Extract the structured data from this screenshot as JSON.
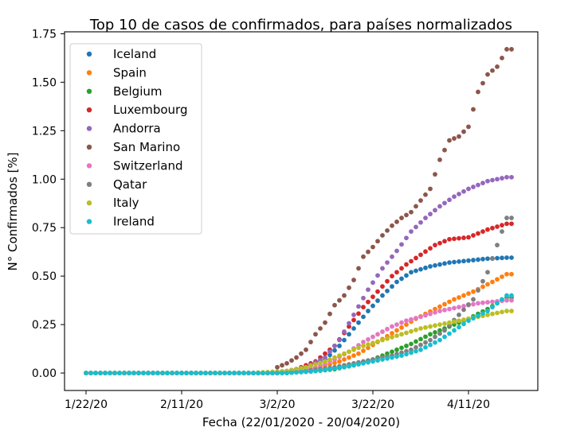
{
  "chart_data": {
    "type": "scatter",
    "title": "Top 10 de casos de confirmados, para países normalizados",
    "xlabel": "Fecha (22/01/2020 - 20/04/2020)",
    "ylabel": "N° Confirmados [%]",
    "x_start": "1/22/20",
    "x_end": "4/20/20",
    "xticks": [
      "1/22/20",
      "2/11/20",
      "3/2/20",
      "3/22/20",
      "4/11/20"
    ],
    "yticks": [
      "0.00",
      "0.25",
      "0.50",
      "0.75",
      "1.00",
      "1.25",
      "1.50",
      "1.75"
    ],
    "ylim": [
      -0.09,
      1.76
    ],
    "grid": false,
    "legend_position": "top-left",
    "series": [
      {
        "name": "Iceland",
        "color": "#1f77b4",
        "anchors": [
          [
            0,
            0
          ],
          [
            38,
            0
          ],
          [
            42,
            0.01
          ],
          [
            46,
            0.03
          ],
          [
            50,
            0.07
          ],
          [
            53,
            0.14
          ],
          [
            56,
            0.23
          ],
          [
            59,
            0.32
          ],
          [
            62,
            0.4
          ],
          [
            65,
            0.47
          ],
          [
            68,
            0.52
          ],
          [
            72,
            0.55
          ],
          [
            76,
            0.57
          ],
          [
            80,
            0.58
          ],
          [
            84,
            0.59
          ],
          [
            88,
            0.595
          ]
        ]
      },
      {
        "name": "Spain",
        "color": "#ff7f0e",
        "anchors": [
          [
            0,
            0
          ],
          [
            40,
            0
          ],
          [
            45,
            0.01
          ],
          [
            49,
            0.03
          ],
          [
            53,
            0.06
          ],
          [
            57,
            0.1
          ],
          [
            61,
            0.16
          ],
          [
            65,
            0.22
          ],
          [
            69,
            0.28
          ],
          [
            73,
            0.33
          ],
          [
            77,
            0.38
          ],
          [
            81,
            0.42
          ],
          [
            85,
            0.47
          ],
          [
            88,
            0.51
          ]
        ]
      },
      {
        "name": "Belgium",
        "color": "#2ca02c",
        "anchors": [
          [
            0,
            0
          ],
          [
            42,
            0
          ],
          [
            48,
            0.01
          ],
          [
            52,
            0.02
          ],
          [
            56,
            0.04
          ],
          [
            60,
            0.07
          ],
          [
            64,
            0.11
          ],
          [
            68,
            0.15
          ],
          [
            72,
            0.2
          ],
          [
            76,
            0.24
          ],
          [
            80,
            0.28
          ],
          [
            84,
            0.33
          ],
          [
            88,
            0.39
          ]
        ]
      },
      {
        "name": "Luxembourg",
        "color": "#d62728",
        "anchors": [
          [
            0,
            0
          ],
          [
            40,
            0
          ],
          [
            44,
            0.02
          ],
          [
            48,
            0.06
          ],
          [
            52,
            0.14
          ],
          [
            55,
            0.24
          ],
          [
            58,
            0.34
          ],
          [
            61,
            0.42
          ],
          [
            64,
            0.5
          ],
          [
            67,
            0.56
          ],
          [
            70,
            0.61
          ],
          [
            73,
            0.66
          ],
          [
            76,
            0.69
          ],
          [
            80,
            0.7
          ],
          [
            84,
            0.74
          ],
          [
            88,
            0.77
          ]
        ]
      },
      {
        "name": "Andorra",
        "color": "#9467bd",
        "anchors": [
          [
            0,
            0
          ],
          [
            38,
            0
          ],
          [
            42,
            0.01
          ],
          [
            46,
            0.03
          ],
          [
            50,
            0.08
          ],
          [
            53,
            0.17
          ],
          [
            56,
            0.3
          ],
          [
            59,
            0.43
          ],
          [
            62,
            0.54
          ],
          [
            65,
            0.63
          ],
          [
            68,
            0.73
          ],
          [
            71,
            0.8
          ],
          [
            74,
            0.86
          ],
          [
            77,
            0.91
          ],
          [
            80,
            0.95
          ],
          [
            84,
            0.99
          ],
          [
            88,
            1.01
          ]
        ]
      },
      {
        "name": "San Marino",
        "color": "#8c564b",
        "anchors": [
          [
            0,
            0
          ],
          [
            39,
            0
          ],
          [
            40,
            0.03
          ],
          [
            42,
            0.05
          ],
          [
            44,
            0.08
          ],
          [
            46,
            0.12
          ],
          [
            48,
            0.2
          ],
          [
            50,
            0.26
          ],
          [
            52,
            0.35
          ],
          [
            54,
            0.4
          ],
          [
            56,
            0.48
          ],
          [
            58,
            0.6
          ],
          [
            60,
            0.65
          ],
          [
            62,
            0.71
          ],
          [
            64,
            0.76
          ],
          [
            66,
            0.8
          ],
          [
            68,
            0.83
          ],
          [
            70,
            0.89
          ],
          [
            72,
            0.95
          ],
          [
            74,
            1.1
          ],
          [
            76,
            1.2
          ],
          [
            78,
            1.22
          ],
          [
            80,
            1.27
          ],
          [
            82,
            1.45
          ],
          [
            84,
            1.54
          ],
          [
            86,
            1.58
          ],
          [
            88,
            1.67
          ]
        ]
      },
      {
        "name": "Switzerland",
        "color": "#e377c2",
        "anchors": [
          [
            0,
            0
          ],
          [
            40,
            0
          ],
          [
            44,
            0.01
          ],
          [
            48,
            0.03
          ],
          [
            52,
            0.07
          ],
          [
            55,
            0.11
          ],
          [
            58,
            0.16
          ],
          [
            61,
            0.2
          ],
          [
            64,
            0.24
          ],
          [
            67,
            0.27
          ],
          [
            70,
            0.29
          ],
          [
            74,
            0.32
          ],
          [
            78,
            0.34
          ],
          [
            82,
            0.36
          ],
          [
            86,
            0.37
          ],
          [
            88,
            0.375
          ]
        ]
      },
      {
        "name": "Qatar",
        "color": "#7f7f7f",
        "anchors": [
          [
            0,
            0
          ],
          [
            40,
            0
          ],
          [
            46,
            0.01
          ],
          [
            52,
            0.03
          ],
          [
            56,
            0.05
          ],
          [
            60,
            0.07
          ],
          [
            64,
            0.09
          ],
          [
            68,
            0.12
          ],
          [
            72,
            0.17
          ],
          [
            75,
            0.22
          ],
          [
            78,
            0.3
          ],
          [
            81,
            0.38
          ],
          [
            84,
            0.52
          ],
          [
            86,
            0.66
          ],
          [
            88,
            0.8
          ]
        ]
      },
      {
        "name": "Italy",
        "color": "#bcbd22",
        "anchors": [
          [
            0,
            0
          ],
          [
            34,
            0
          ],
          [
            38,
            0.005
          ],
          [
            42,
            0.01
          ],
          [
            46,
            0.03
          ],
          [
            50,
            0.06
          ],
          [
            54,
            0.1
          ],
          [
            58,
            0.14
          ],
          [
            62,
            0.17
          ],
          [
            66,
            0.2
          ],
          [
            70,
            0.23
          ],
          [
            74,
            0.25
          ],
          [
            78,
            0.27
          ],
          [
            82,
            0.29
          ],
          [
            86,
            0.31
          ],
          [
            88,
            0.32
          ]
        ]
      },
      {
        "name": "Ireland",
        "color": "#17becf",
        "anchors": [
          [
            0,
            0
          ],
          [
            42,
            0
          ],
          [
            48,
            0.01
          ],
          [
            54,
            0.03
          ],
          [
            58,
            0.05
          ],
          [
            62,
            0.07
          ],
          [
            66,
            0.09
          ],
          [
            70,
            0.12
          ],
          [
            74,
            0.17
          ],
          [
            77,
            0.22
          ],
          [
            80,
            0.27
          ],
          [
            84,
            0.32
          ],
          [
            88,
            0.4
          ]
        ]
      }
    ]
  }
}
